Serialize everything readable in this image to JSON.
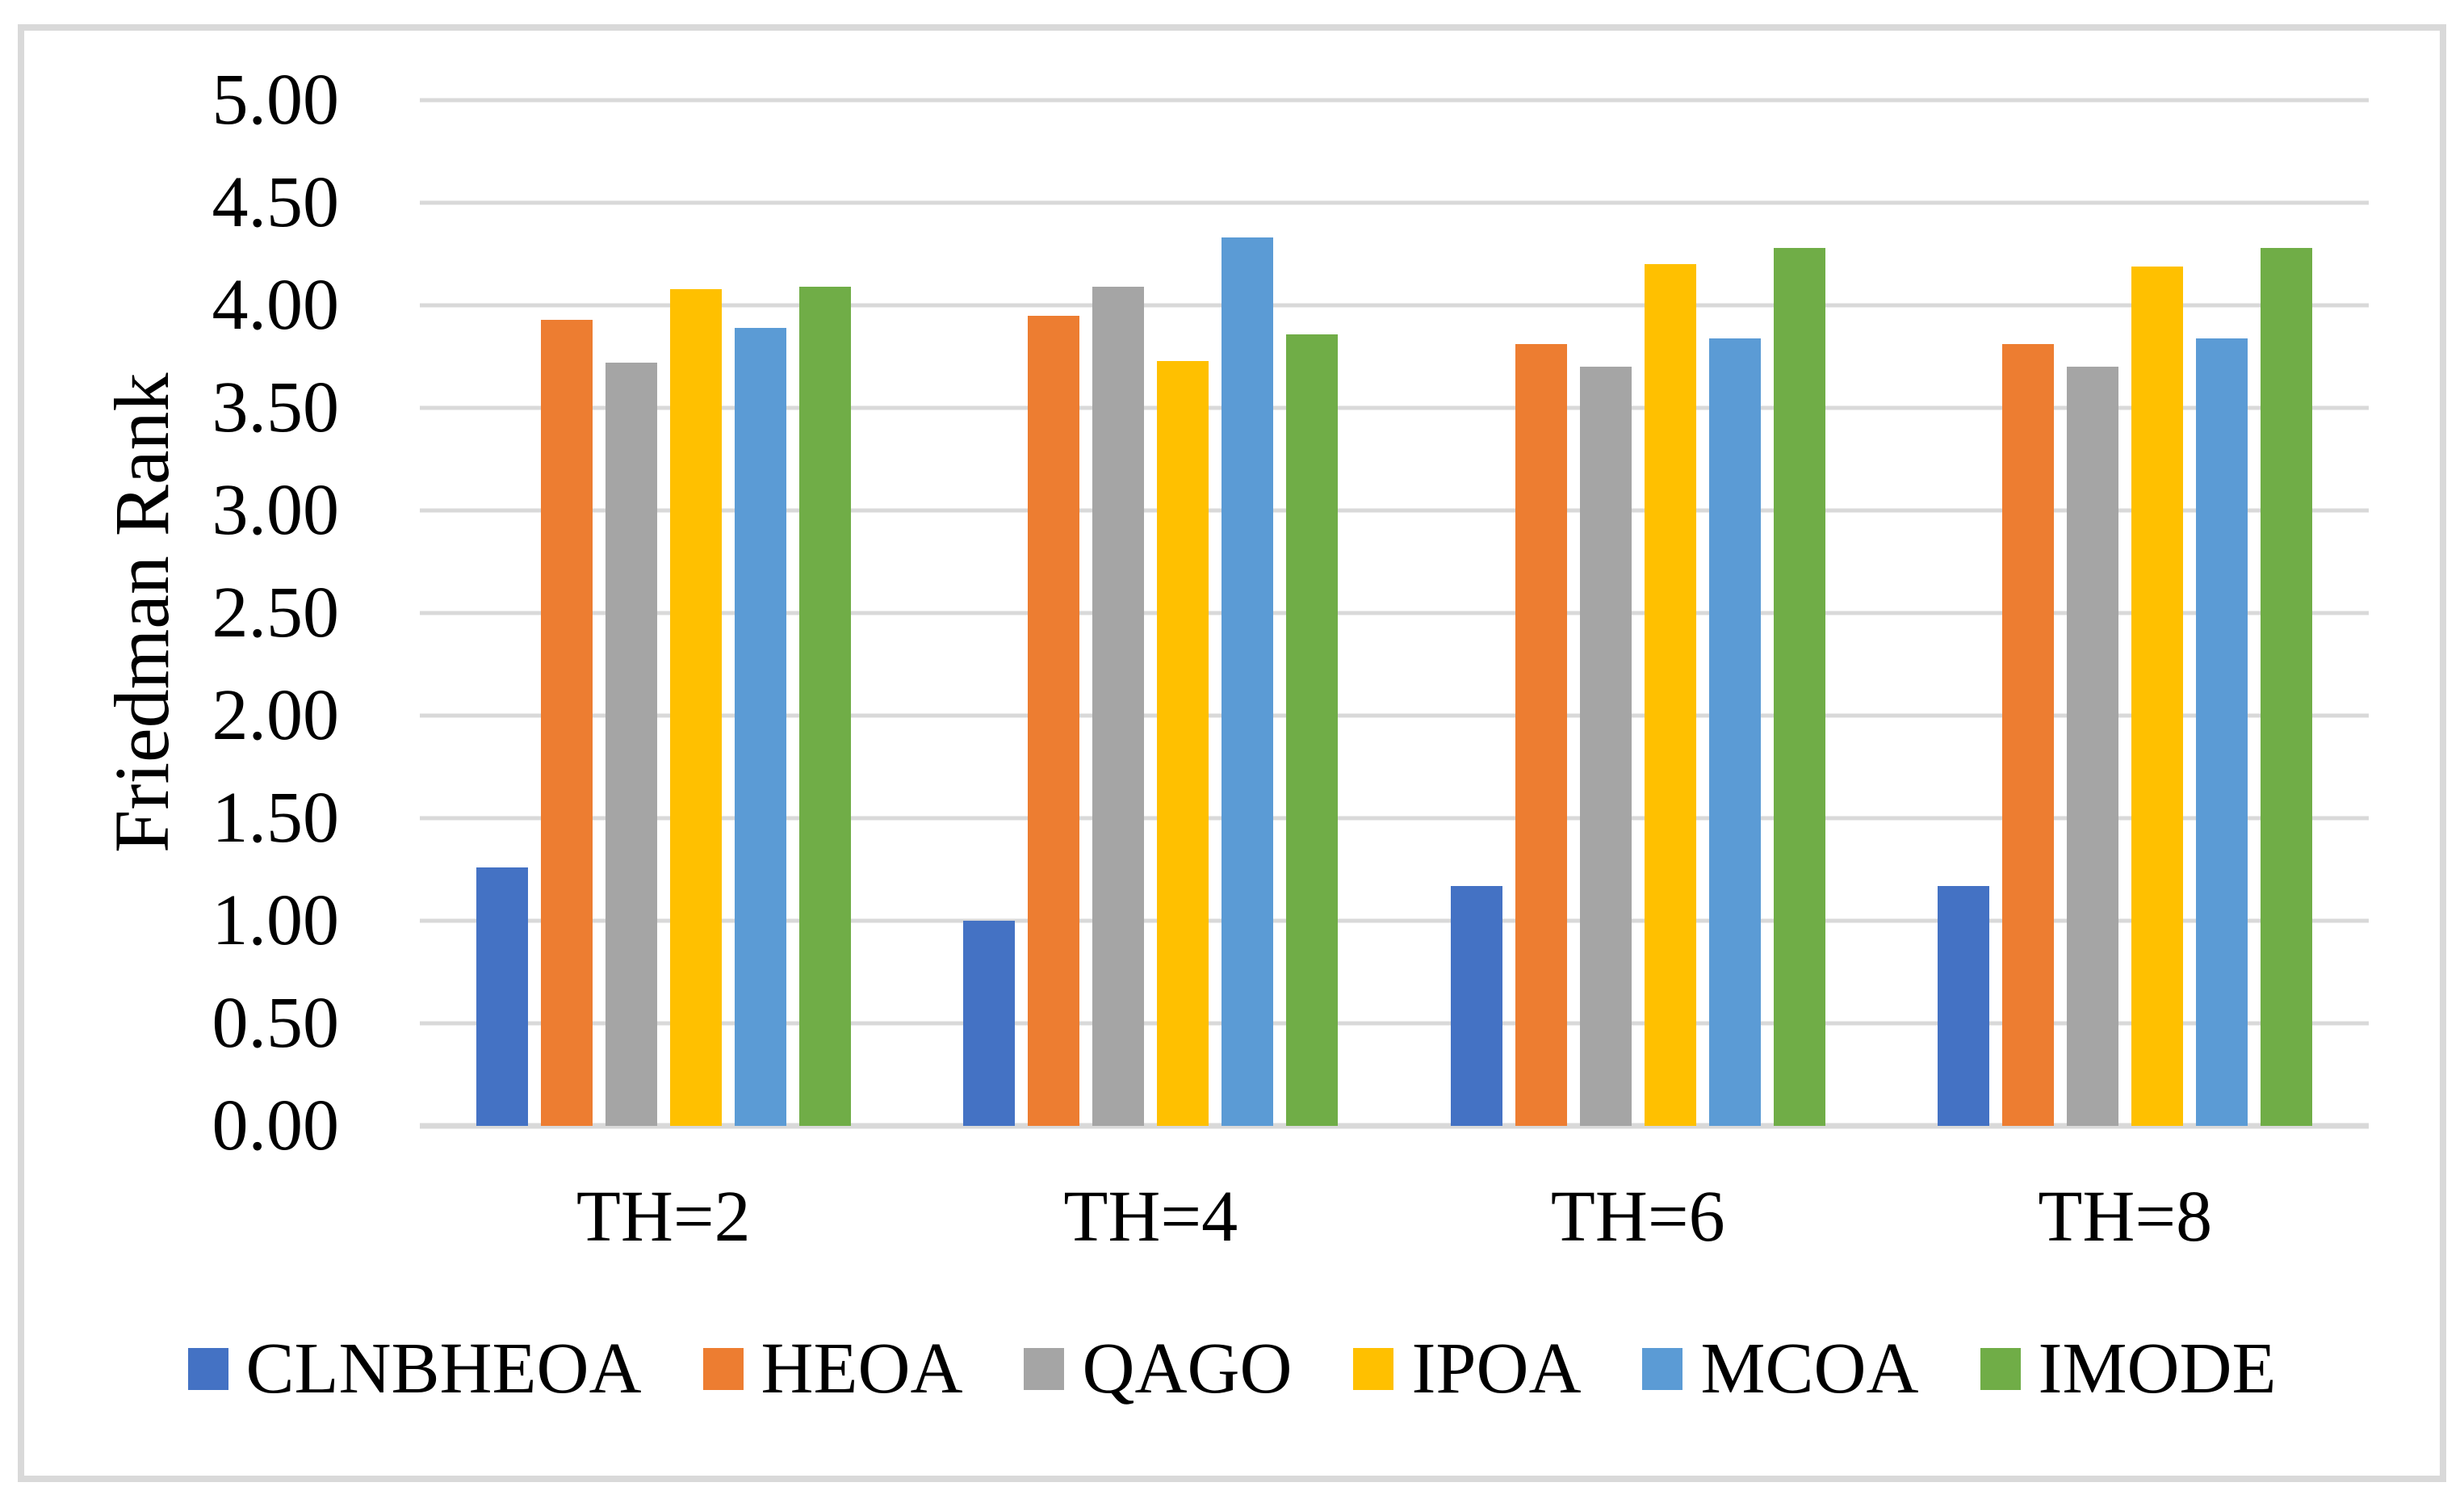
{
  "figure": {
    "background_color": "#ffffff",
    "frame_color": "#D9D9D9"
  },
  "chart_data": {
    "type": "bar",
    "title": "",
    "xlabel": "",
    "ylabel": "Friedman Rank",
    "categories": [
      "TH=2",
      "TH=4",
      "TH=6",
      "TH=8"
    ],
    "series": [
      {
        "name": "CLNBHEOA",
        "color": "#4472C4",
        "values": [
          1.26,
          1.0,
          1.17,
          1.17
        ]
      },
      {
        "name": "HEOA",
        "color": "#ED7D31",
        "values": [
          3.93,
          3.95,
          3.81,
          3.81
        ]
      },
      {
        "name": "QAGO",
        "color": "#A5A5A5",
        "values": [
          3.72,
          4.09,
          3.7,
          3.7
        ]
      },
      {
        "name": "IPOA",
        "color": "#FFC000",
        "values": [
          4.08,
          3.73,
          4.2,
          4.19
        ]
      },
      {
        "name": "MCOA",
        "color": "#5B9BD5",
        "values": [
          3.89,
          4.33,
          3.84,
          3.84
        ]
      },
      {
        "name": "IMODE",
        "color": "#70AD47",
        "values": [
          4.09,
          3.86,
          4.28,
          4.28
        ]
      }
    ],
    "ylim": [
      0,
      5
    ],
    "ytick_step": 0.5,
    "ytick_labels": [
      "0.00",
      "0.50",
      "1.00",
      "1.50",
      "2.00",
      "2.50",
      "3.00",
      "3.50",
      "4.00",
      "4.50",
      "5.00"
    ],
    "grid": true,
    "gridline_color": "#D9D9D9",
    "legend_position": "bottom"
  }
}
